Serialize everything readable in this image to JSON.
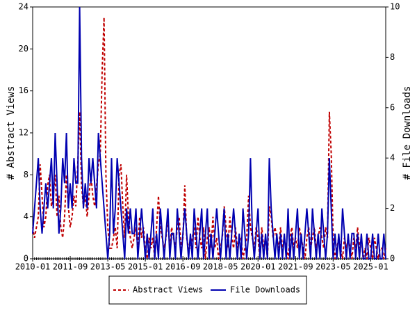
{
  "chart_data": {
    "type": "line",
    "y_label": "# Abstract Views",
    "y2_label": "# File Downloads",
    "x": [
      "2010-01",
      "2010-02",
      "2010-03",
      "2010-04",
      "2010-05",
      "2010-06",
      "2010-07",
      "2010-08",
      "2010-09",
      "2010-10",
      "2010-11",
      "2010-12",
      "2011-01",
      "2011-02",
      "2011-03",
      "2011-04",
      "2011-05",
      "2011-06",
      "2011-07",
      "2011-08",
      "2011-09",
      "2011-10",
      "2011-11",
      "2011-12",
      "2012-01",
      "2012-02",
      "2012-03",
      "2012-04",
      "2012-05",
      "2012-06",
      "2012-07",
      "2012-08",
      "2012-09",
      "2012-10",
      "2012-11",
      "2012-12",
      "2013-01",
      "2013-02",
      "2013-03",
      "2013-04",
      "2013-05",
      "2013-06",
      "2013-07",
      "2013-08",
      "2013-09",
      "2013-10",
      "2013-11",
      "2013-12",
      "2014-01",
      "2014-02",
      "2014-03",
      "2014-04",
      "2014-05",
      "2014-06",
      "2014-07",
      "2014-08",
      "2014-09",
      "2014-10",
      "2014-11",
      "2014-12",
      "2015-01",
      "2015-02",
      "2015-03",
      "2015-04",
      "2015-05",
      "2015-06",
      "2015-07",
      "2015-08",
      "2015-09",
      "2015-10",
      "2015-11",
      "2015-12",
      "2016-01",
      "2016-02",
      "2016-03",
      "2016-04",
      "2016-05",
      "2016-06",
      "2016-07",
      "2016-08",
      "2016-09",
      "2016-10",
      "2016-11",
      "2016-12",
      "2017-01",
      "2017-02",
      "2017-03",
      "2017-04",
      "2017-05",
      "2017-06",
      "2017-07",
      "2017-08",
      "2017-09",
      "2017-10",
      "2017-11",
      "2017-12",
      "2018-01",
      "2018-02",
      "2018-03",
      "2018-04",
      "2018-05",
      "2018-06",
      "2018-07",
      "2018-08",
      "2018-09",
      "2018-10",
      "2018-11",
      "2018-12",
      "2019-01",
      "2019-02",
      "2019-03",
      "2019-04",
      "2019-05",
      "2019-06",
      "2019-07",
      "2019-08",
      "2019-09",
      "2019-10",
      "2019-11",
      "2019-12",
      "2020-01",
      "2020-02",
      "2020-03",
      "2020-04",
      "2020-05",
      "2020-06",
      "2020-07",
      "2020-08",
      "2020-09",
      "2020-10",
      "2020-11",
      "2020-12",
      "2021-01",
      "2021-02",
      "2021-03",
      "2021-04",
      "2021-05",
      "2021-06",
      "2021-07",
      "2021-08",
      "2021-09",
      "2021-10",
      "2021-11",
      "2021-12",
      "2022-01",
      "2022-02",
      "2022-03",
      "2022-04",
      "2022-05",
      "2022-06",
      "2022-07",
      "2022-08",
      "2022-09",
      "2022-10",
      "2022-11",
      "2022-12",
      "2023-01",
      "2023-02",
      "2023-03",
      "2023-04",
      "2023-05",
      "2023-06",
      "2023-07",
      "2023-08",
      "2023-09",
      "2023-10",
      "2023-11",
      "2023-12",
      "2024-01",
      "2024-02",
      "2024-03",
      "2024-04",
      "2024-05",
      "2024-06",
      "2024-07",
      "2024-08",
      "2024-09",
      "2024-10",
      "2024-11",
      "2024-12",
      "2025-01",
      "2025-02",
      "2025-03",
      "2025-04",
      "2025-05",
      "2025-06",
      "2025-07",
      "2025-08",
      "2025-09"
    ],
    "xticks": [
      "2010-01",
      "2011-09",
      "2013-05",
      "2015-01",
      "2016-09",
      "2018-05",
      "2020-01",
      "2021-09",
      "2023-05",
      "2025-01"
    ],
    "ylim": [
      0,
      24
    ],
    "yticks": [
      0,
      4,
      8,
      12,
      16,
      20,
      24
    ],
    "y2lim": [
      0,
      10
    ],
    "y2ticks": [
      0,
      2,
      4,
      6,
      8,
      10
    ],
    "legend": "bottom",
    "series": [
      {
        "name": "Abstract Views",
        "color": "#c00000",
        "dashed": true,
        "values": [
          3,
          2,
          3,
          4,
          9,
          6,
          3,
          4,
          7,
          8,
          5,
          6,
          8,
          4,
          6,
          3,
          2,
          4,
          8,
          5,
          3,
          4,
          6,
          5,
          9,
          14,
          7,
          5,
          6,
          4,
          6,
          8,
          6,
          5,
          7,
          9,
          10,
          18,
          23,
          8,
          3,
          1,
          1,
          2,
          3,
          1,
          8,
          9,
          5,
          2,
          8,
          4,
          2,
          1,
          2,
          3,
          1,
          4,
          2,
          3,
          1,
          0,
          2,
          1,
          2,
          0,
          3,
          6,
          3,
          2,
          1,
          2,
          4,
          1,
          3,
          2,
          1,
          3,
          4,
          1,
          2,
          7,
          2,
          1,
          1,
          2,
          3,
          1,
          4,
          2,
          1,
          3,
          0,
          2,
          3,
          1,
          4,
          1,
          2,
          0,
          1,
          2,
          5,
          3,
          1,
          4,
          2,
          1,
          3,
          1,
          2,
          2,
          0,
          1,
          2,
          6,
          3,
          2,
          1,
          3,
          2,
          0,
          3,
          1,
          2,
          0,
          5,
          4,
          2,
          3,
          2,
          1,
          3,
          1,
          2,
          1,
          0,
          2,
          3,
          1,
          2,
          1,
          3,
          2,
          1,
          0,
          2,
          3,
          1,
          2,
          3,
          1,
          2,
          3,
          2,
          1,
          3,
          2,
          14,
          10,
          2,
          0,
          1,
          2,
          1,
          0,
          2,
          1,
          2,
          1,
          0,
          2,
          1,
          3,
          1,
          2,
          0,
          1,
          0,
          2,
          1,
          0,
          2,
          1,
          0,
          1,
          1,
          0,
          1
        ]
      },
      {
        "name": "File Downloads",
        "color": "#0000b0",
        "axis": "y2",
        "values": [
          1,
          2,
          3,
          4,
          2,
          1,
          2,
          3,
          2,
          3,
          4,
          2,
          5,
          3,
          1,
          2,
          4,
          3,
          5,
          2,
          3,
          2,
          4,
          3,
          3,
          10,
          4,
          2,
          3,
          2,
          4,
          3,
          4,
          3,
          2,
          5,
          4,
          3,
          2,
          1,
          0,
          1,
          4,
          1,
          2,
          4,
          3,
          2,
          1,
          0,
          2,
          1,
          2,
          1,
          1,
          2,
          0,
          1,
          2,
          1,
          0,
          1,
          0,
          1,
          2,
          0,
          1,
          0,
          2,
          1,
          0,
          1,
          2,
          0,
          1,
          1,
          0,
          2,
          1,
          0,
          1,
          2,
          1,
          0,
          1,
          0,
          2,
          1,
          0,
          1,
          2,
          0,
          1,
          2,
          0,
          1,
          0,
          1,
          2,
          1,
          0,
          1,
          2,
          0,
          1,
          0,
          1,
          2,
          1,
          0,
          1,
          0,
          2,
          1,
          0,
          1,
          4,
          1,
          0,
          1,
          2,
          0,
          1,
          0,
          1,
          0,
          4,
          2,
          1,
          0,
          1,
          0,
          1,
          0,
          1,
          0,
          2,
          0,
          1,
          0,
          1,
          2,
          0,
          1,
          0,
          1,
          2,
          1,
          0,
          2,
          1,
          0,
          1,
          0,
          2,
          1,
          0,
          1,
          4,
          2,
          0,
          1,
          0,
          1,
          0,
          2,
          1,
          0,
          1,
          0,
          1,
          1,
          0,
          1,
          0,
          1,
          0,
          0,
          1,
          0,
          0,
          1,
          0,
          0,
          1,
          0,
          0,
          1,
          0
        ]
      }
    ]
  }
}
